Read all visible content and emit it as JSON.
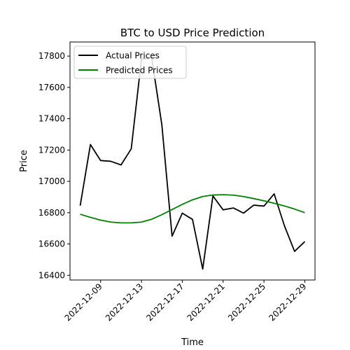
{
  "chart_data": {
    "type": "line",
    "title": "BTC to USD Price Prediction",
    "xlabel": "Time",
    "ylabel": "Price",
    "x": [
      "2022-12-07",
      "2022-12-08",
      "2022-12-09",
      "2022-12-10",
      "2022-12-11",
      "2022-12-12",
      "2022-12-13",
      "2022-12-14",
      "2022-12-15",
      "2022-12-16",
      "2022-12-17",
      "2022-12-18",
      "2022-12-19",
      "2022-12-20",
      "2022-12-21",
      "2022-12-22",
      "2022-12-23",
      "2022-12-24",
      "2022-12-25",
      "2022-12-26",
      "2022-12-27",
      "2022-12-28",
      "2022-12-29"
    ],
    "xticks": [
      "2022-12-09",
      "2022-12-13",
      "2022-12-17",
      "2022-12-21",
      "2022-12-25",
      "2022-12-29"
    ],
    "xlim": [
      "2022-12-06",
      "2022-12-30"
    ],
    "ylim": [
      16370,
      17890
    ],
    "yticks": [
      16400,
      16600,
      16800,
      17000,
      17200,
      17400,
      17600,
      17800
    ],
    "grid": false,
    "legend_position": "upper-left",
    "series": [
      {
        "name": "Actual Prices",
        "color": "#000000",
        "values": [
          16845,
          17235,
          17133,
          17128,
          17105,
          17208,
          17780,
          17790,
          17360,
          16650,
          16797,
          16757,
          16440,
          16907,
          16818,
          16830,
          16797,
          16848,
          16842,
          16920,
          16717,
          16553,
          16615
        ]
      },
      {
        "name": "Predicted Prices",
        "color": "#008000",
        "values": [
          16790,
          16770,
          16752,
          16740,
          16735,
          16735,
          16740,
          16758,
          16787,
          16820,
          16853,
          16882,
          16903,
          16913,
          16915,
          16912,
          16903,
          16890,
          16876,
          16860,
          16843,
          16823,
          16800
        ]
      }
    ]
  }
}
